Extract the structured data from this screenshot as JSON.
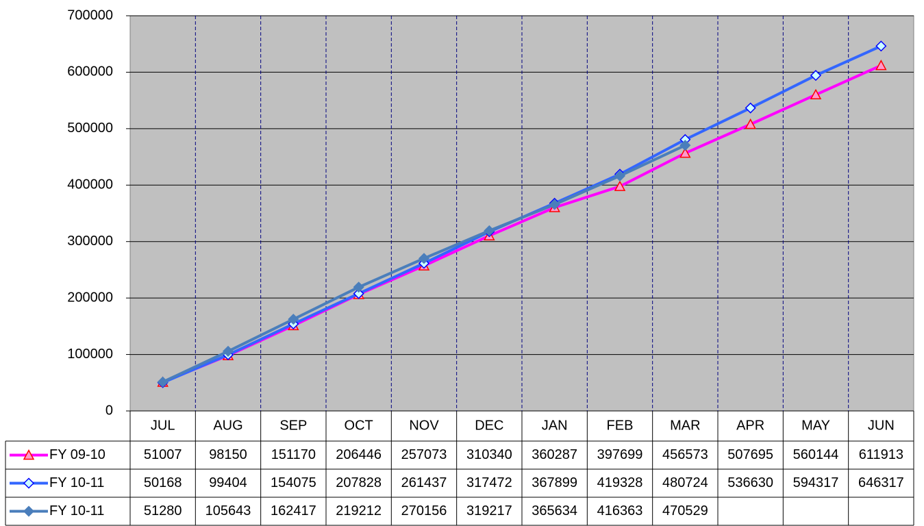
{
  "chart_data": {
    "type": "line",
    "categories": [
      "JUL",
      "AUG",
      "SEP",
      "OCT",
      "NOV",
      "DEC",
      "JAN",
      "FEB",
      "MAR",
      "APR",
      "MAY",
      "JUN"
    ],
    "series": [
      {
        "name": "FY 09-10",
        "color": "#ff00ff",
        "marker": "triangle",
        "marker_fill": "#ff99cc",
        "marker_stroke": "#ff0000",
        "values": [
          51007,
          98150,
          151170,
          206446,
          257073,
          310340,
          360287,
          397699,
          456573,
          507695,
          560144,
          611913
        ]
      },
      {
        "name": "FY 10-11",
        "color": "#3366ff",
        "marker": "diamond",
        "marker_fill": "#ccffff",
        "marker_stroke": "#0000ff",
        "values": [
          50168,
          99404,
          154075,
          207828,
          261437,
          317472,
          367899,
          419328,
          480724,
          536630,
          594317,
          646317
        ]
      },
      {
        "name": "FY 10-11",
        "color": "#4a7ebb",
        "marker": "diamond",
        "marker_fill": "#4a7ebb",
        "marker_stroke": "#4a7ebb",
        "values": [
          51280,
          105643,
          162417,
          219212,
          270156,
          319217,
          365634,
          416363,
          470529,
          null,
          null,
          null
        ]
      }
    ],
    "ylim": [
      0,
      700000
    ],
    "yticks": [
      0,
      100000,
      200000,
      300000,
      400000,
      500000,
      600000,
      700000
    ],
    "grid": true,
    "data_table": true
  }
}
